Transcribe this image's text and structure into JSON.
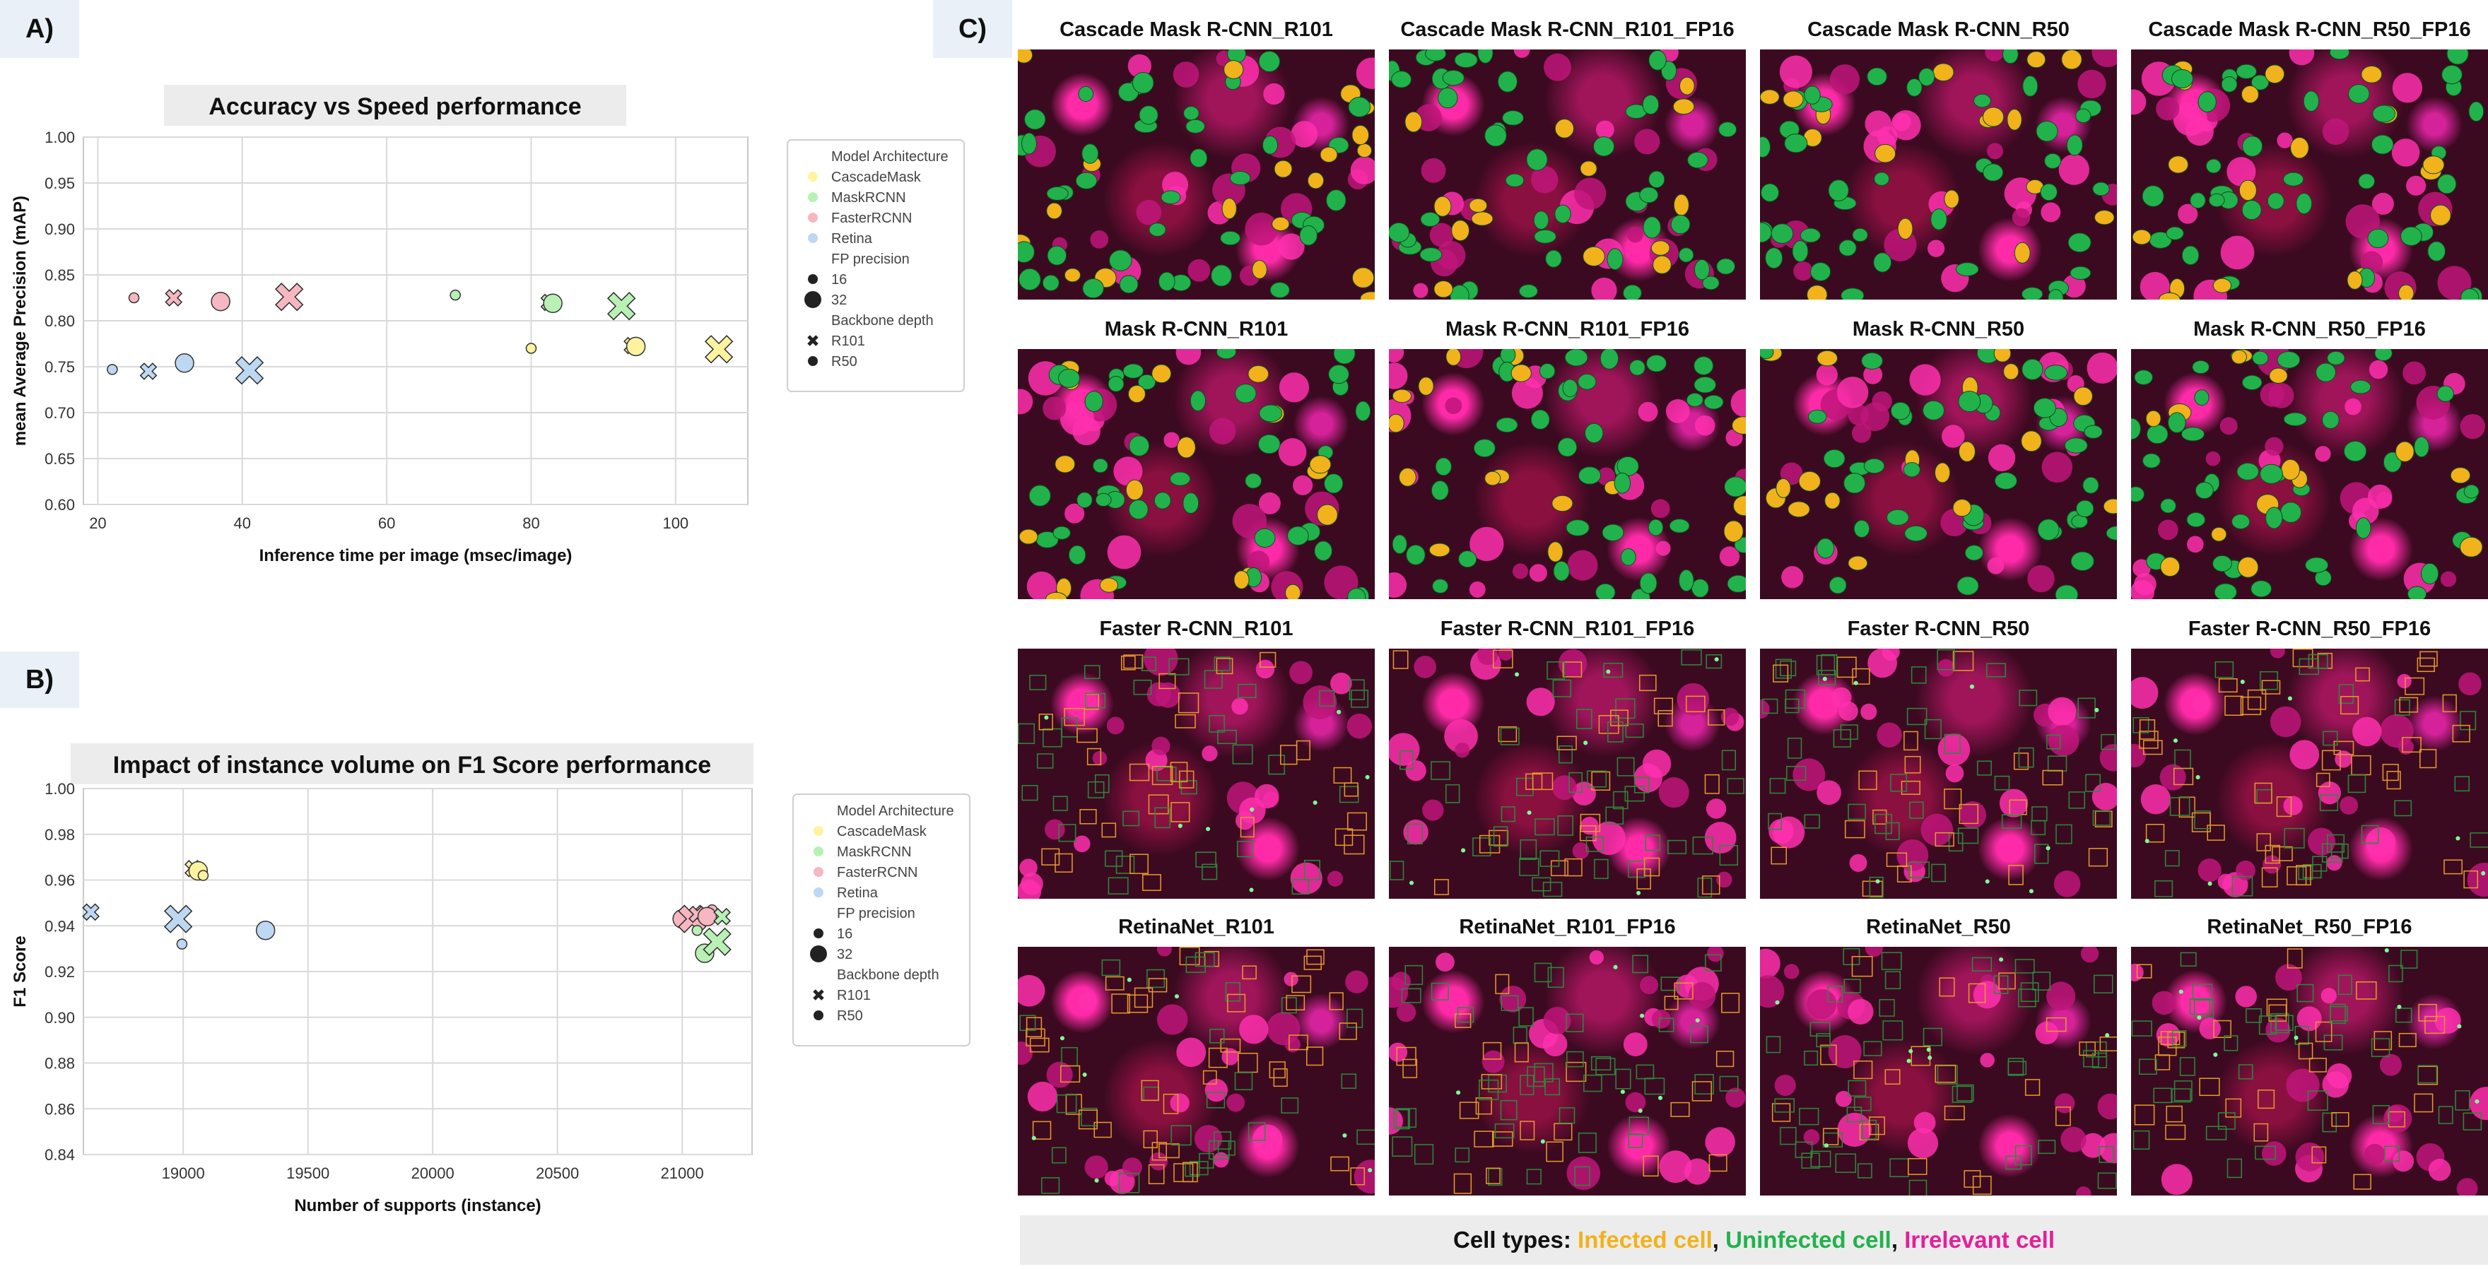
{
  "panel_labels": {
    "a": "A)",
    "b": "B)",
    "c": "C)"
  },
  "colors": {
    "CascadeMask": "#fff3a0",
    "MaskRCNN": "#b9f0b4",
    "FasterRCNN": "#f6b7c0",
    "Retina": "#bcd8f2",
    "infected": "#f2b21b",
    "uninfected": "#22b24c",
    "irrelevant": "#e61e9a"
  },
  "chart_data": [
    {
      "type": "scatter",
      "title": "Accuracy vs Speed performance",
      "xlabel": "Inference time per image (msec/image)",
      "ylabel": "mean Average Precision (mAP)",
      "xlim": [
        18,
        110
      ],
      "ylim": [
        0.6,
        1.0
      ],
      "xticks": [
        20,
        40,
        60,
        80,
        100
      ],
      "yticks": [
        0.6,
        0.65,
        0.7,
        0.75,
        0.8,
        0.85,
        0.9,
        0.95,
        1.0
      ],
      "ytick_labels": [
        "0.60",
        "0.65",
        "0.70",
        "0.75",
        "0.80",
        "0.85",
        "0.90",
        "0.95",
        "1.00"
      ],
      "grid": true,
      "legend": {
        "placement": "outside-right",
        "title_arch": "Model Architecture",
        "arch": [
          "CascadeMask",
          "MaskRCNN",
          "FasterRCNN",
          "Retina"
        ],
        "title_fp": "FP precision",
        "fp": [
          "16",
          "32"
        ],
        "title_backbone": "Backbone depth",
        "backbone": [
          "R101",
          "R50"
        ]
      },
      "points": [
        {
          "arch": "FasterRCNN",
          "fp": "16",
          "backbone": "R50",
          "x": 25.0,
          "y": 0.825
        },
        {
          "arch": "FasterRCNN",
          "fp": "16",
          "backbone": "R101",
          "x": 30.5,
          "y": 0.825
        },
        {
          "arch": "FasterRCNN",
          "fp": "32",
          "backbone": "R50",
          "x": 37.0,
          "y": 0.821
        },
        {
          "arch": "FasterRCNN",
          "fp": "32",
          "backbone": "R101",
          "x": 46.5,
          "y": 0.826
        },
        {
          "arch": "Retina",
          "fp": "16",
          "backbone": "R50",
          "x": 22.0,
          "y": 0.747
        },
        {
          "arch": "Retina",
          "fp": "16",
          "backbone": "R101",
          "x": 27.0,
          "y": 0.745
        },
        {
          "arch": "Retina",
          "fp": "32",
          "backbone": "R50",
          "x": 32.0,
          "y": 0.754
        },
        {
          "arch": "Retina",
          "fp": "32",
          "backbone": "R101",
          "x": 41.0,
          "y": 0.746
        },
        {
          "arch": "MaskRCNN",
          "fp": "16",
          "backbone": "R50",
          "x": 69.5,
          "y": 0.828
        },
        {
          "arch": "MaskRCNN",
          "fp": "16",
          "backbone": "R101",
          "x": 82.5,
          "y": 0.82
        },
        {
          "arch": "MaskRCNN",
          "fp": "32",
          "backbone": "R50",
          "x": 83.0,
          "y": 0.819
        },
        {
          "arch": "MaskRCNN",
          "fp": "32",
          "backbone": "R101",
          "x": 92.5,
          "y": 0.816
        },
        {
          "arch": "CascadeMask",
          "fp": "16",
          "backbone": "R50",
          "x": 80.0,
          "y": 0.77
        },
        {
          "arch": "CascadeMask",
          "fp": "16",
          "backbone": "R101",
          "x": 94.0,
          "y": 0.773
        },
        {
          "arch": "CascadeMask",
          "fp": "32",
          "backbone": "R50",
          "x": 94.5,
          "y": 0.772
        },
        {
          "arch": "CascadeMask",
          "fp": "32",
          "backbone": "R101",
          "x": 106.0,
          "y": 0.769
        }
      ]
    },
    {
      "type": "scatter",
      "title": "Impact of instance volume on F1 Score performance",
      "xlabel": "Number of supports (instance)",
      "ylabel": "F1 Score",
      "xlim": [
        18600,
        21280
      ],
      "ylim": [
        0.84,
        1.0
      ],
      "xticks": [
        19000,
        19500,
        20000,
        20500,
        21000
      ],
      "yticks": [
        0.84,
        0.86,
        0.88,
        0.9,
        0.92,
        0.94,
        0.96,
        0.98,
        1.0
      ],
      "ytick_labels": [
        "0.84",
        "0.86",
        "0.88",
        "0.90",
        "0.92",
        "0.94",
        "0.96",
        "0.98",
        "1.00"
      ],
      "grid": true,
      "legend": {
        "placement": "outside-right",
        "title_arch": "Model Architecture",
        "arch": [
          "CascadeMask",
          "MaskRCNN",
          "FasterRCNN",
          "Retina"
        ],
        "title_fp": "FP precision",
        "fp": [
          "16",
          "32"
        ],
        "title_backbone": "Backbone depth",
        "backbone": [
          "R101",
          "R50"
        ]
      },
      "points": [
        {
          "arch": "Retina",
          "fp": "16",
          "backbone": "R101",
          "x": 18630,
          "y": 0.946
        },
        {
          "arch": "Retina",
          "fp": "32",
          "backbone": "R101",
          "x": 18980,
          "y": 0.943
        },
        {
          "arch": "Retina",
          "fp": "16",
          "backbone": "R50",
          "x": 18995,
          "y": 0.932
        },
        {
          "arch": "Retina",
          "fp": "32",
          "backbone": "R50",
          "x": 19330,
          "y": 0.938
        },
        {
          "arch": "CascadeMask",
          "fp": "16",
          "backbone": "R101",
          "x": 19040,
          "y": 0.965
        },
        {
          "arch": "CascadeMask",
          "fp": "32",
          "backbone": "R50",
          "x": 19060,
          "y": 0.964
        },
        {
          "arch": "CascadeMask",
          "fp": "16",
          "backbone": "R50",
          "x": 19080,
          "y": 0.962
        },
        {
          "arch": "FasterRCNN",
          "fp": "32",
          "backbone": "R50",
          "x": 21000,
          "y": 0.943
        },
        {
          "arch": "FasterRCNN",
          "fp": "32",
          "backbone": "R101",
          "x": 21040,
          "y": 0.943
        },
        {
          "arch": "FasterRCNN",
          "fp": "16",
          "backbone": "R101",
          "x": 21060,
          "y": 0.945
        },
        {
          "arch": "FasterRCNN",
          "fp": "16",
          "backbone": "R50",
          "x": 21120,
          "y": 0.947
        },
        {
          "arch": "FasterRCNN",
          "fp": "32",
          "backbone": "R50",
          "x": 21100,
          "y": 0.944
        },
        {
          "arch": "MaskRCNN",
          "fp": "16",
          "backbone": "R50",
          "x": 21060,
          "y": 0.938
        },
        {
          "arch": "MaskRCNN",
          "fp": "32",
          "backbone": "R50",
          "x": 21090,
          "y": 0.928
        },
        {
          "arch": "MaskRCNN",
          "fp": "32",
          "backbone": "R101",
          "x": 21140,
          "y": 0.933
        },
        {
          "arch": "MaskRCNN",
          "fp": "16",
          "backbone": "R101",
          "x": 21160,
          "y": 0.944
        }
      ]
    }
  ],
  "image_grid": {
    "rows": [
      {
        "kind": "mask",
        "titles": [
          "Cascade Mask R-CNN_R101",
          "Cascade Mask R-CNN_R101_FP16",
          "Cascade Mask R-CNN_R50",
          "Cascade Mask R-CNN_R50_FP16"
        ]
      },
      {
        "kind": "mask",
        "titles": [
          "Mask R-CNN_R101",
          "Mask R-CNN_R101_FP16",
          "Mask R-CNN_R50",
          "Mask R-CNN_R50_FP16"
        ]
      },
      {
        "kind": "box",
        "titles": [
          "Faster R-CNN_R101",
          "Faster R-CNN_R101_FP16",
          "Faster R-CNN_R50",
          "Faster R-CNN_R50_FP16"
        ]
      },
      {
        "kind": "box",
        "titles": [
          "RetinaNet_R101",
          "RetinaNet_R101_FP16",
          "RetinaNet_R50",
          "RetinaNet_R50_FP16"
        ]
      }
    ]
  },
  "cell_legend": {
    "prefix": "Cell types: ",
    "infected": "Infected cell",
    "sep1": ", ",
    "uninfected": "Uninfected cell",
    "sep2": ", ",
    "irrelevant": "Irrelevant cell"
  }
}
